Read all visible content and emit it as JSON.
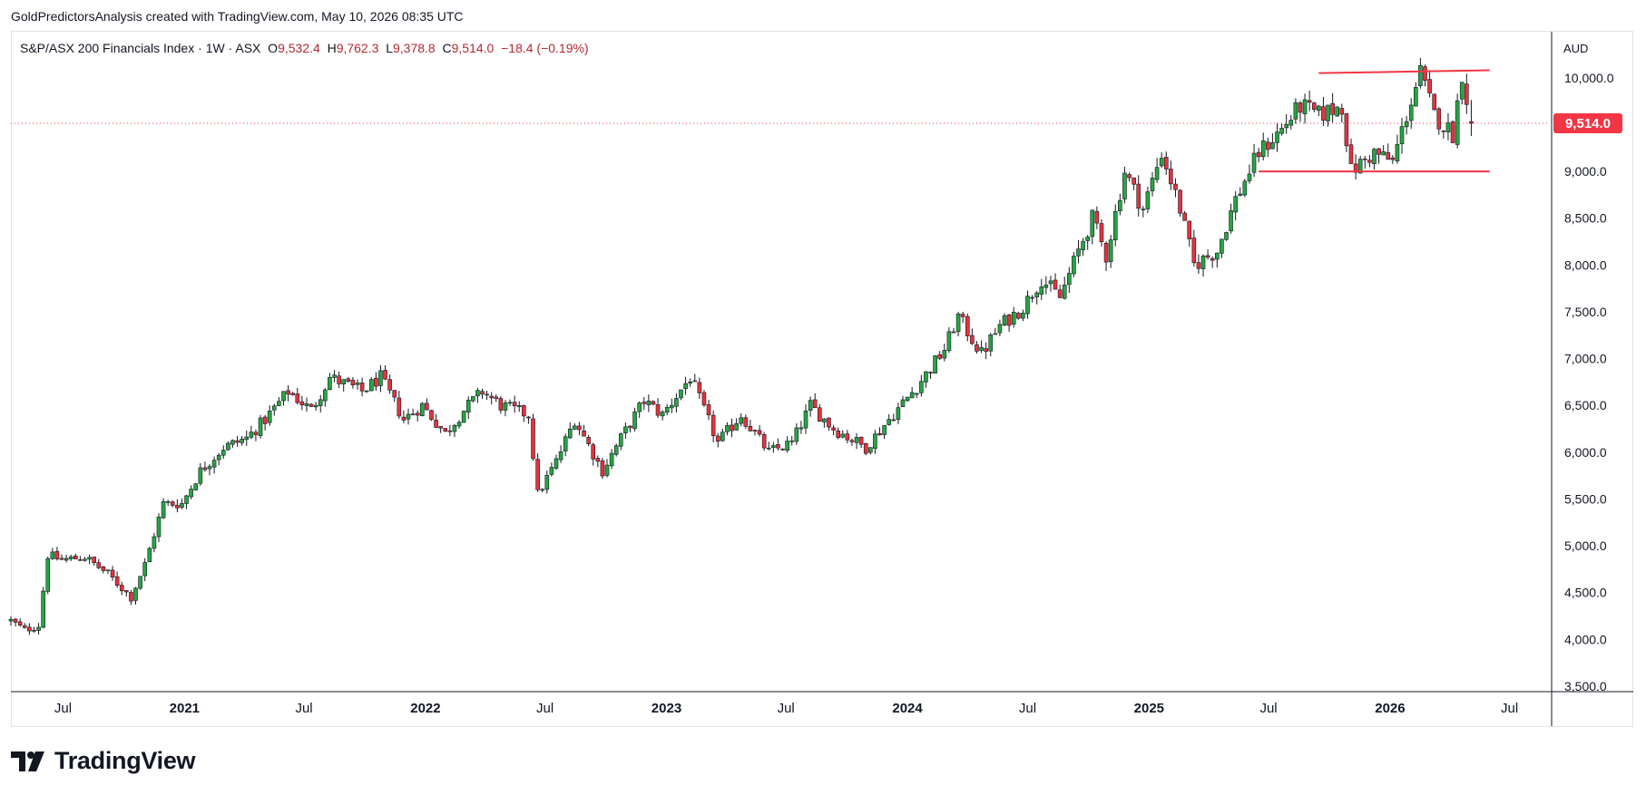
{
  "header": {
    "caption": "GoldPredictorsAnalysis created with TradingView.com, May 10, 2026 08:35 UTC"
  },
  "legend": {
    "symbol_name": "S&P/ASX 200 Financials Index",
    "interval": "1W",
    "exchange": "ASX",
    "separator": "·",
    "open_label": "O",
    "open": "9,532.4",
    "high_label": "H",
    "high": "9,762.3",
    "low_label": "L",
    "low": "9,378.8",
    "close_label": "C",
    "close": "9,514.0",
    "change": "−18.4 (−0.19%)"
  },
  "price_scale": {
    "currency": "AUD",
    "last_price_label": "9,514.0"
  },
  "brand": {
    "name": "TradingView"
  },
  "colors": {
    "up": "#26a641",
    "down": "#e8323c",
    "wick": "#131722",
    "level": "#f23645",
    "last_price_bg": "#f23645",
    "grid_border": "#e0e3eb",
    "axis_text": "#131722"
  },
  "chart_data": {
    "type": "candlestick",
    "interval": "weekly",
    "x_range": [
      "2020-04-13",
      "2026-08-31"
    ],
    "y_range": [
      3500,
      10250
    ],
    "y_ticks": [
      3500,
      4000,
      4500,
      5000,
      5500,
      6000,
      6500,
      7000,
      7500,
      8000,
      8500,
      9000,
      9500,
      10000
    ],
    "y_tick_labels": [
      "3,500.0",
      "4,000.0",
      "4,500.0",
      "5,000.0",
      "5,500.0",
      "6,000.0",
      "6,500.0",
      "7,000.0",
      "7,500.0",
      "8,000.0",
      "8,500.0",
      "9,000.0",
      "9,500.0",
      "10,000.0"
    ],
    "x_ticks": [
      {
        "date": "2020-07-01",
        "label": "Jul",
        "bold": false
      },
      {
        "date": "2021-01-01",
        "label": "2021",
        "bold": true
      },
      {
        "date": "2021-07-01",
        "label": "Jul",
        "bold": false
      },
      {
        "date": "2022-01-01",
        "label": "2022",
        "bold": true
      },
      {
        "date": "2022-07-01",
        "label": "Jul",
        "bold": false
      },
      {
        "date": "2023-01-01",
        "label": "2023",
        "bold": true
      },
      {
        "date": "2023-07-01",
        "label": "Jul",
        "bold": false
      },
      {
        "date": "2024-01-01",
        "label": "2024",
        "bold": true
      },
      {
        "date": "2024-07-01",
        "label": "Jul",
        "bold": false
      },
      {
        "date": "2025-01-01",
        "label": "2025",
        "bold": true
      },
      {
        "date": "2025-07-01",
        "label": "Jul",
        "bold": false
      },
      {
        "date": "2026-01-01",
        "label": "2026",
        "bold": true
      },
      {
        "date": "2026-07-01",
        "label": "Jul",
        "bold": false
      }
    ],
    "last_price": 9514.0,
    "last_candle": {
      "open": 9532.4,
      "high": 9762.3,
      "low": 9378.8,
      "close": 9514.0
    },
    "levels": [
      {
        "name": "resistance",
        "from": "2025-09-15",
        "to": "2026-06-01",
        "value_start": 10050,
        "value_end": 10080
      },
      {
        "name": "support",
        "from": "2025-06-16",
        "to": "2026-06-01",
        "value_start": 9000,
        "value_end": 9000
      }
    ],
    "close_anchors": [
      [
        "2020-04-13",
        4200
      ],
      [
        "2020-05-04",
        4100
      ],
      [
        "2020-05-25",
        4150
      ],
      [
        "2020-06-08",
        4900
      ],
      [
        "2020-06-29",
        4850
      ],
      [
        "2020-08-03",
        4880
      ],
      [
        "2020-09-07",
        4700
      ],
      [
        "2020-10-12",
        4450
      ],
      [
        "2020-11-02",
        4800
      ],
      [
        "2020-11-30",
        5450
      ],
      [
        "2020-12-28",
        5450
      ],
      [
        "2021-01-25",
        5800
      ],
      [
        "2021-03-01",
        6050
      ],
      [
        "2021-04-05",
        6150
      ],
      [
        "2021-05-03",
        6350
      ],
      [
        "2021-06-07",
        6650
      ],
      [
        "2021-07-12",
        6450
      ],
      [
        "2021-08-09",
        6800
      ],
      [
        "2021-09-27",
        6650
      ],
      [
        "2021-10-25",
        6800
      ],
      [
        "2021-11-29",
        6350
      ],
      [
        "2021-12-27",
        6500
      ],
      [
        "2022-01-31",
        6200
      ],
      [
        "2022-02-28",
        6450
      ],
      [
        "2022-03-28",
        6650
      ],
      [
        "2022-04-25",
        6500
      ],
      [
        "2022-06-06",
        6400
      ],
      [
        "2022-06-20",
        5550
      ],
      [
        "2022-07-18",
        5900
      ],
      [
        "2022-08-15",
        6350
      ],
      [
        "2022-09-26",
        5800
      ],
      [
        "2022-10-24",
        6150
      ],
      [
        "2022-11-28",
        6550
      ],
      [
        "2022-12-26",
        6400
      ],
      [
        "2023-02-06",
        6800
      ],
      [
        "2023-03-20",
        6100
      ],
      [
        "2023-04-24",
        6400
      ],
      [
        "2023-06-05",
        6000
      ],
      [
        "2023-07-10",
        6100
      ],
      [
        "2023-08-07",
        6500
      ],
      [
        "2023-09-11",
        6250
      ],
      [
        "2023-10-30",
        6050
      ],
      [
        "2023-12-04",
        6350
      ],
      [
        "2024-01-15",
        6700
      ],
      [
        "2024-02-26",
        7100
      ],
      [
        "2024-03-18",
        7450
      ],
      [
        "2024-04-22",
        7050
      ],
      [
        "2024-05-20",
        7350
      ],
      [
        "2024-06-24",
        7550
      ],
      [
        "2024-07-22",
        7850
      ],
      [
        "2024-08-19",
        7650
      ],
      [
        "2024-09-16",
        8150
      ],
      [
        "2024-10-07",
        8500
      ],
      [
        "2024-10-28",
        8100
      ],
      [
        "2024-11-25",
        9000
      ],
      [
        "2024-12-23",
        8600
      ],
      [
        "2025-01-20",
        9200
      ],
      [
        "2025-02-17",
        8600
      ],
      [
        "2025-03-10",
        8000
      ],
      [
        "2025-04-14",
        8150
      ],
      [
        "2025-05-12",
        8700
      ],
      [
        "2025-06-16",
        9200
      ],
      [
        "2025-07-21",
        9450
      ],
      [
        "2025-08-18",
        9700
      ],
      [
        "2025-09-15",
        9600
      ],
      [
        "2025-10-20",
        9700
      ],
      [
        "2025-11-03",
        9000
      ],
      [
        "2025-12-08",
        9200
      ],
      [
        "2026-01-05",
        9100
      ],
      [
        "2026-01-26",
        9600
      ],
      [
        "2026-02-16",
        10050
      ],
      [
        "2026-03-09",
        9600
      ],
      [
        "2026-04-06",
        9400
      ],
      [
        "2026-04-20",
        10050
      ],
      [
        "2026-05-04",
        9514
      ]
    ]
  }
}
